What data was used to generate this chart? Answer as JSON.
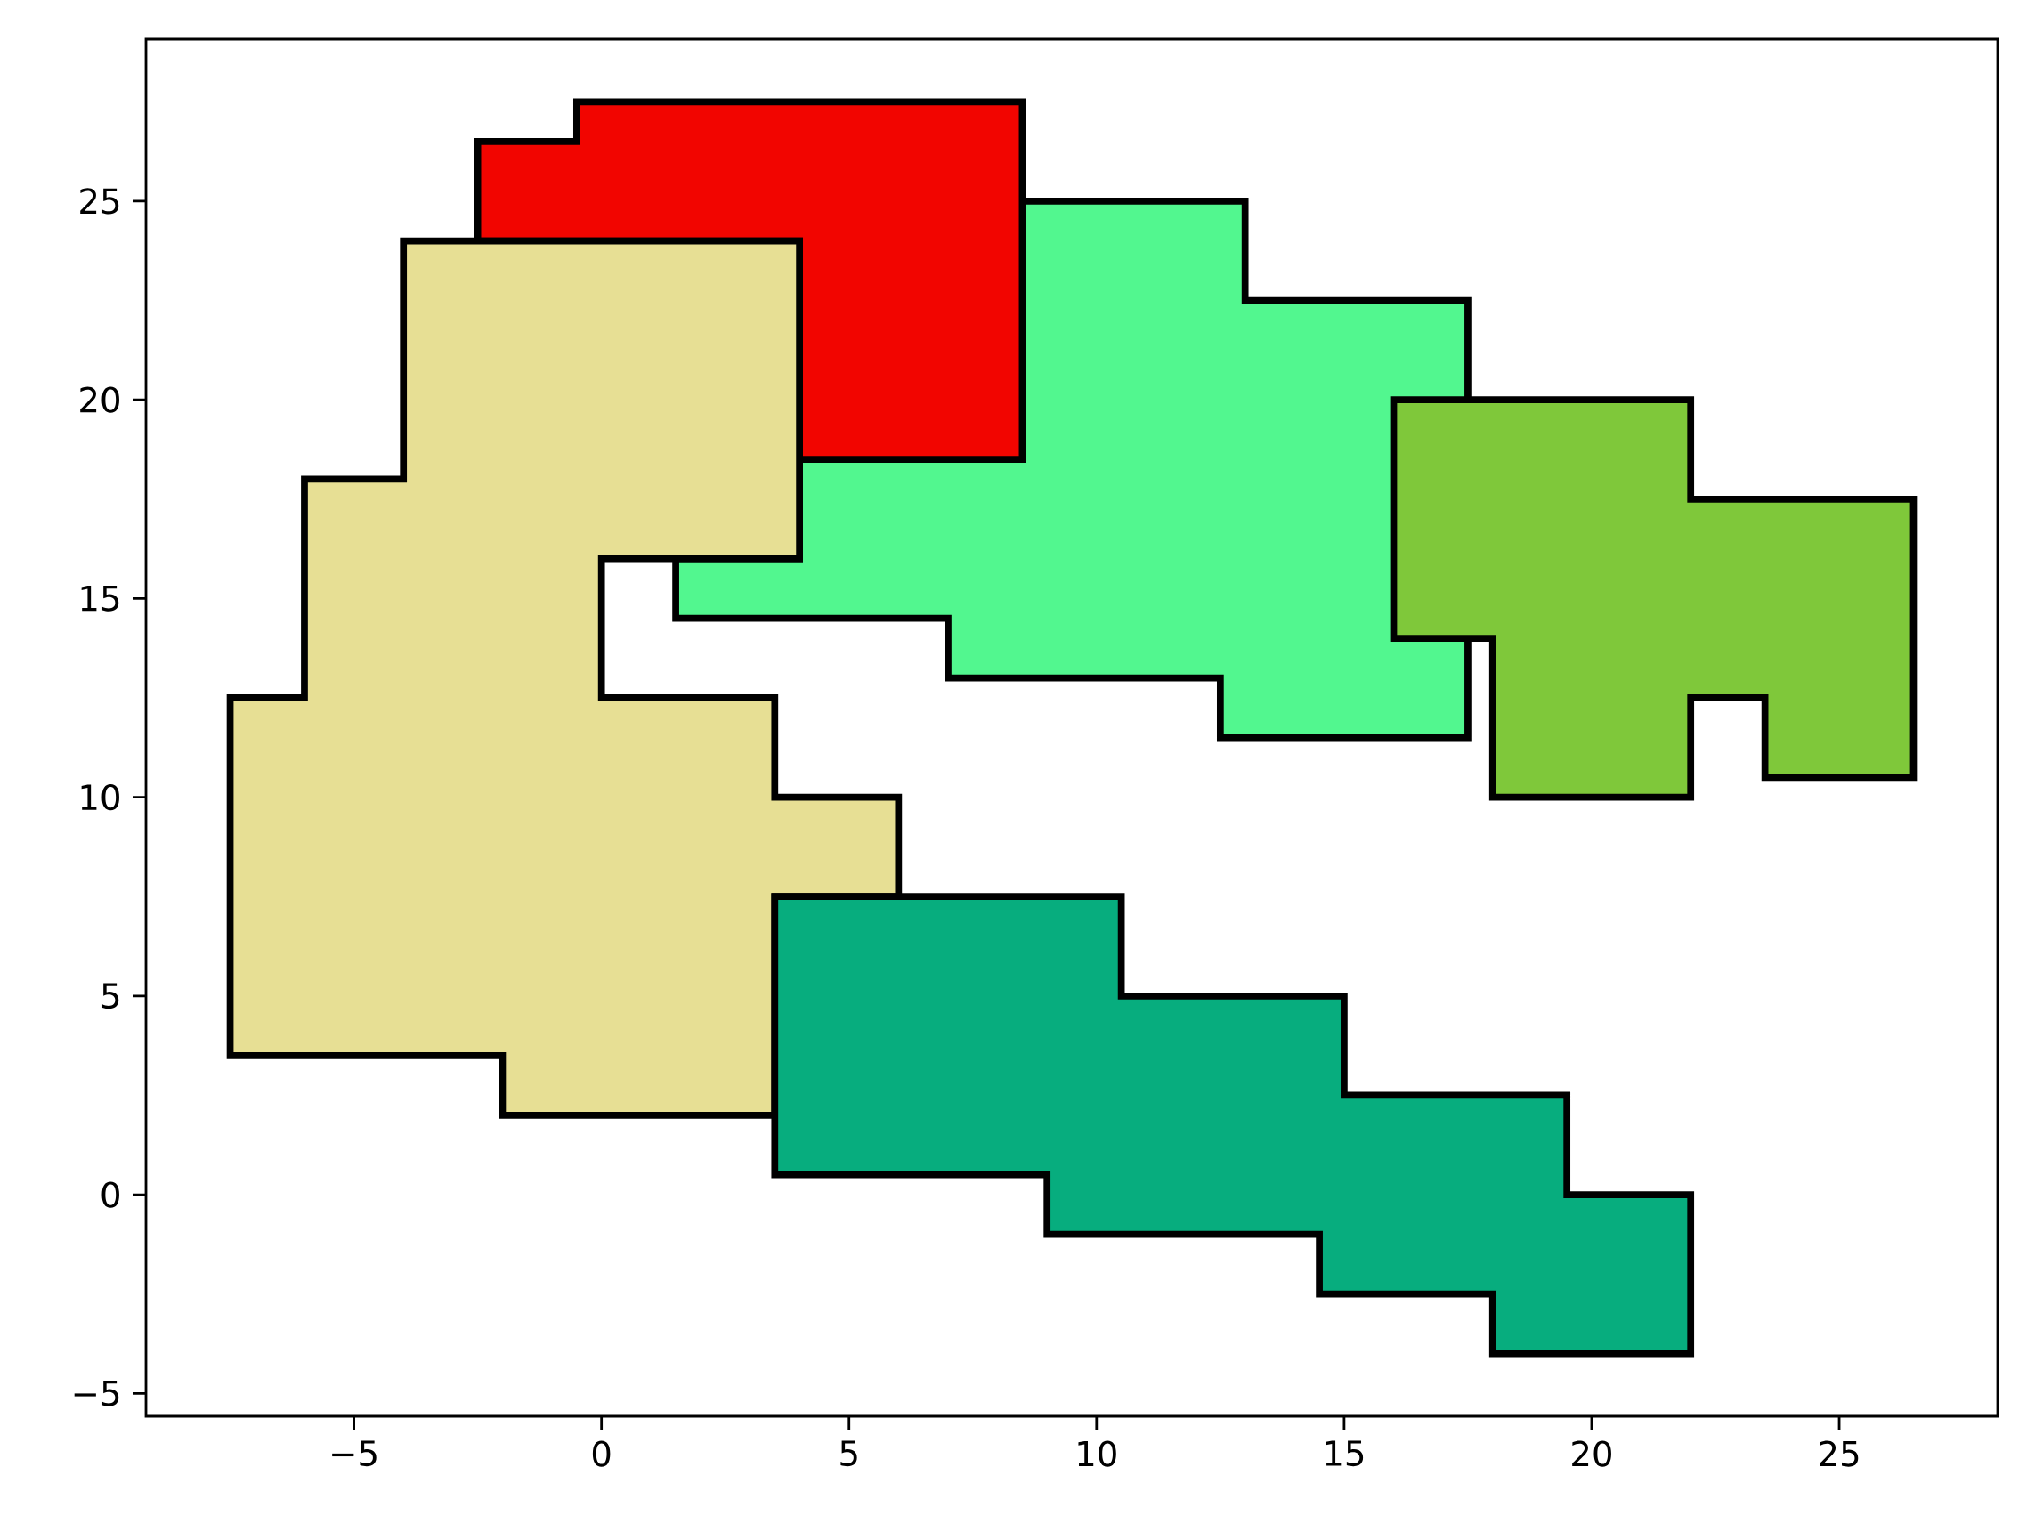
{
  "chart_data": {
    "type": "area",
    "xlim": [
      -9.2,
      28.2
    ],
    "ylim": [
      -5.575,
      29.075
    ],
    "xticks": [
      {
        "value": -5,
        "label": "−5"
      },
      0,
      5,
      10,
      15,
      20,
      25
    ],
    "yticks": [
      {
        "value": -5,
        "label": "−5"
      },
      0,
      5,
      10,
      15,
      20,
      25
    ],
    "grid": false,
    "series": [
      {
        "color": "#52f78f",
        "x": [
          1.5,
          1.5,
          7,
          7,
          12.5,
          12.5,
          17.5,
          17.5,
          13,
          13,
          8.5,
          8.5,
          4,
          4
        ],
        "values": [
          16,
          14.5,
          14.5,
          13,
          13,
          11.5,
          11.5,
          22.5,
          22.5,
          25,
          25,
          18.5,
          18.5,
          16
        ]
      },
      {
        "color": "#f20500",
        "x": [
          -2.5,
          -0.5,
          -0.5,
          8.5,
          8.5,
          4,
          4,
          -2.5
        ],
        "values": [
          26.5,
          26.5,
          27.5,
          27.5,
          18.5,
          18.5,
          24,
          24
        ]
      },
      {
        "color": "#7fc83a",
        "x": [
          16,
          22,
          22,
          26.5,
          26.5,
          23.5,
          23.5,
          22,
          22,
          18,
          18,
          16
        ],
        "values": [
          20,
          20,
          17.5,
          17.5,
          10.5,
          10.5,
          12.5,
          12.5,
          10,
          10,
          14,
          14
        ]
      },
      {
        "color": "#e7df94",
        "x": [
          -4,
          4,
          4,
          0,
          0,
          3.5,
          3.5,
          6,
          6,
          3.5,
          3.5,
          -2,
          -2,
          -7.5,
          -7.5,
          -6,
          -6,
          -4
        ],
        "values": [
          24,
          24,
          16,
          16,
          12.5,
          12.5,
          10,
          10,
          7.5,
          7.5,
          2,
          2,
          3.5,
          3.5,
          12.5,
          12.5,
          18,
          18
        ]
      },
      {
        "color": "#07ad7e",
        "x": [
          3.5,
          10.5,
          10.5,
          15,
          15,
          19.5,
          19.5,
          22,
          22,
          18,
          18,
          14.5,
          14.5,
          9,
          9,
          3.5
        ],
        "values": [
          7.5,
          7.5,
          5,
          5,
          2.5,
          2.5,
          0,
          0,
          -4,
          -4,
          -2.5,
          -2.5,
          -1,
          -1,
          0.5,
          0.5
        ]
      }
    ]
  }
}
